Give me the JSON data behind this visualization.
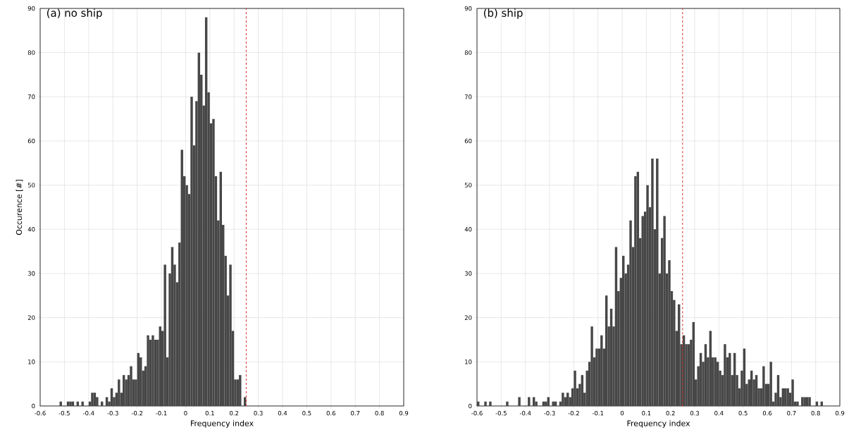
{
  "chart_data": [
    {
      "type": "histogram",
      "title": "(a) no ship",
      "xlabel": "Frequency index",
      "ylabel": "Occurence [#]",
      "color": "#474747",
      "bins": [
        -0.52,
        -0.51,
        -0.5,
        -0.49,
        -0.48,
        -0.47,
        -0.46,
        -0.45,
        -0.44,
        -0.43,
        -0.42,
        -0.41,
        -0.4,
        -0.39,
        -0.38,
        -0.37,
        -0.36,
        -0.35,
        -0.34,
        -0.33,
        -0.32,
        -0.31,
        -0.3,
        -0.29,
        -0.28,
        -0.27,
        -0.26,
        -0.25,
        -0.24,
        -0.23,
        -0.22,
        -0.21,
        -0.2,
        -0.19,
        -0.18,
        -0.17,
        -0.16,
        -0.15,
        -0.14,
        -0.13,
        -0.12,
        -0.11,
        -0.1,
        -0.09,
        -0.08,
        -0.07,
        -0.06,
        -0.05,
        -0.04,
        -0.03,
        -0.02,
        -0.01,
        0,
        0.01,
        0.02,
        0.03,
        0.04,
        0.05,
        0.06,
        0.07,
        0.08,
        0.09,
        0.1,
        0.11,
        0.12,
        0.13,
        0.14,
        0.15,
        0.16,
        0.17,
        0.18,
        0.19,
        0.2,
        0.21,
        0.22,
        0.23,
        0.24,
        0.25
      ],
      "values": [
        1,
        0,
        0,
        1,
        1,
        1,
        0,
        1,
        0,
        1,
        0,
        0,
        1,
        3,
        3,
        2,
        0,
        1,
        0,
        2,
        1,
        4,
        2,
        3,
        6,
        3,
        7,
        6,
        7,
        9,
        6,
        6,
        12,
        11,
        8,
        9,
        16,
        15,
        16,
        15,
        15,
        18,
        17,
        32,
        11,
        30,
        36,
        32,
        28,
        37,
        58,
        52,
        50,
        48,
        70,
        59,
        69,
        80,
        75,
        68,
        88,
        71,
        64,
        65,
        52,
        42,
        53,
        41,
        34,
        25,
        32,
        17,
        6,
        6,
        7,
        0,
        2
      ],
      "xlim": [
        -0.6,
        0.9
      ],
      "ylim": [
        0,
        90
      ],
      "xticks": [
        -0.6,
        -0.5,
        -0.4,
        -0.3,
        -0.2,
        -0.1,
        0,
        0.1,
        0.2,
        0.3,
        0.4,
        0.5,
        0.6,
        0.7,
        0.8,
        0.9
      ],
      "yticks": [
        0,
        10,
        20,
        30,
        40,
        50,
        60,
        70,
        80,
        90
      ],
      "grid": true,
      "ref_lines": [
        {
          "axis": "x",
          "value": 0.25,
          "color": "#d62728",
          "line_style": "dashed"
        }
      ]
    },
    {
      "type": "histogram",
      "title": "(b) ship",
      "xlabel": "Frequency index",
      "color": "#474747",
      "bins": [
        -0.6,
        -0.59,
        -0.58,
        -0.57,
        -0.56,
        -0.55,
        -0.54,
        -0.53,
        -0.52,
        -0.51,
        -0.5,
        -0.49,
        -0.48,
        -0.47,
        -0.46,
        -0.45,
        -0.44,
        -0.43,
        -0.42,
        -0.41,
        -0.4,
        -0.39,
        -0.38,
        -0.37,
        -0.36,
        -0.35,
        -0.34,
        -0.33,
        -0.32,
        -0.31,
        -0.3,
        -0.29,
        -0.28,
        -0.27,
        -0.26,
        -0.25,
        -0.24,
        -0.23,
        -0.22,
        -0.21,
        -0.2,
        -0.19,
        -0.18,
        -0.17,
        -0.16,
        -0.15,
        -0.14,
        -0.13,
        -0.12,
        -0.11,
        -0.1,
        -0.09,
        -0.08,
        -0.07,
        -0.06,
        -0.05,
        -0.04,
        -0.03,
        -0.02,
        -0.01,
        0,
        0.01,
        0.02,
        0.03,
        0.04,
        0.05,
        0.06,
        0.07,
        0.08,
        0.09,
        0.1,
        0.11,
        0.12,
        0.13,
        0.14,
        0.15,
        0.16,
        0.17,
        0.18,
        0.19,
        0.2,
        0.21,
        0.22,
        0.23,
        0.24,
        0.25,
        0.26,
        0.27,
        0.28,
        0.29,
        0.3,
        0.31,
        0.32,
        0.33,
        0.34,
        0.35,
        0.36,
        0.37,
        0.38,
        0.39,
        0.4,
        0.41,
        0.42,
        0.43,
        0.44,
        0.45,
        0.46,
        0.47,
        0.48,
        0.49,
        0.5,
        0.51,
        0.52,
        0.53,
        0.54,
        0.55,
        0.56,
        0.57,
        0.58,
        0.59,
        0.6,
        0.61,
        0.62,
        0.63,
        0.64,
        0.65,
        0.66,
        0.67,
        0.68,
        0.69,
        0.7,
        0.71,
        0.72,
        0.73,
        0.74,
        0.75,
        0.76,
        0.77,
        0.78,
        0.79,
        0.8,
        0.81,
        0.82,
        0.83
      ],
      "values": [
        1,
        0,
        0,
        1,
        0,
        1,
        0,
        0,
        0,
        0,
        0,
        0,
        1,
        0,
        0,
        0,
        0,
        2,
        0,
        0,
        0,
        2,
        0,
        2,
        1,
        0,
        0,
        1,
        1,
        2,
        0,
        1,
        1,
        0,
        1,
        3,
        2,
        3,
        2,
        4,
        8,
        4,
        5,
        7,
        3,
        8,
        10,
        18,
        11,
        13,
        13,
        16,
        13,
        25,
        18,
        22,
        18,
        36,
        26,
        29,
        34,
        30,
        32,
        42,
        36,
        52,
        53,
        38,
        43,
        44,
        50,
        45,
        56,
        40,
        56,
        30,
        38,
        43,
        30,
        33,
        26,
        24,
        17,
        23,
        14,
        16,
        14,
        14,
        15,
        19,
        6,
        9,
        12,
        10,
        14,
        11,
        17,
        11,
        11,
        10,
        8,
        7,
        14,
        11,
        12,
        7,
        12,
        7,
        4,
        8,
        13,
        5,
        6,
        8,
        6,
        7,
        4,
        4,
        9,
        5,
        5,
        10,
        1,
        3,
        7,
        2,
        4,
        4,
        4,
        3,
        6,
        1,
        1,
        0,
        2,
        2,
        2,
        2,
        0,
        0,
        1,
        0,
        1
      ],
      "xlim": [
        -0.6,
        0.9
      ],
      "ylim": [
        0,
        90
      ],
      "xticks": [
        -0.6,
        -0.5,
        -0.4,
        -0.3,
        -0.2,
        -0.1,
        0,
        0.1,
        0.2,
        0.3,
        0.4,
        0.5,
        0.6,
        0.7,
        0.8,
        0.9
      ],
      "yticks": [
        0,
        10,
        20,
        30,
        40,
        50,
        60,
        70,
        80,
        90
      ],
      "grid": true,
      "ref_lines": [
        {
          "axis": "x",
          "value": 0.25,
          "color": "#d62728",
          "line_style": "dashed"
        }
      ]
    }
  ]
}
